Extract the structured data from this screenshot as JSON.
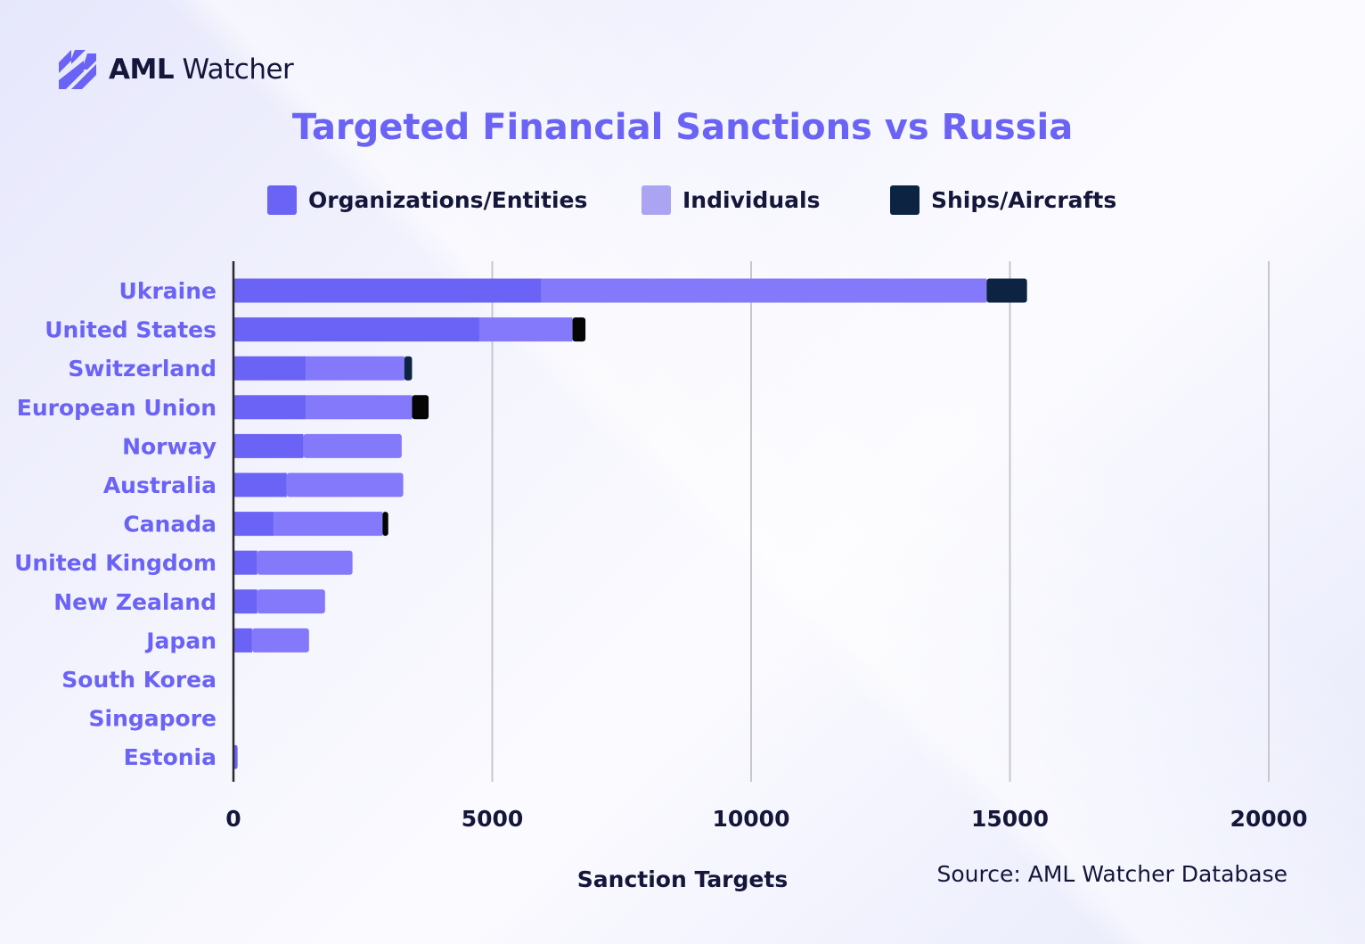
{
  "brand": {
    "name_bold": "AML",
    "name_regular": "Watcher",
    "logo_icon": "diagonal-stripes-logo-icon",
    "logo_color": "#6a63f5"
  },
  "source_text": "Source: AML Watcher Database",
  "colors": {
    "title": "#6a63f5",
    "category_label": "#6a63f5",
    "text_dark": "#14173a",
    "grid": "#c8c8cc",
    "axis": "#2a2a2a"
  },
  "chart_data": {
    "type": "bar",
    "orientation": "horizontal",
    "stacked": true,
    "title": "Targeted Financial Sanctions vs Russia",
    "xlabel": "Sanction Targets",
    "ylabel": "",
    "xlim": [
      0,
      20000
    ],
    "xticks": [
      "0",
      "5000",
      "10000",
      "15000",
      "20000"
    ],
    "grid": true,
    "legend_position": "top",
    "categories": [
      "Ukraine",
      "United States",
      "Switzerland",
      "European Union",
      "Norway",
      "Australia",
      "Canada",
      "United Kingdom",
      "New Zealand",
      "Japan",
      "South Korea",
      "Singapore",
      "Estonia"
    ],
    "series": [
      {
        "name": "Organizations/Entities",
        "color": "#6a63f5",
        "values": [
          5950,
          4750,
          1400,
          1400,
          1350,
          1030,
          780,
          460,
          460,
          360,
          0,
          0,
          80
        ]
      },
      {
        "name": "Individuals",
        "color": "#8479fb",
        "legend_color": "#aba4f3",
        "values": [
          8600,
          1800,
          1900,
          2050,
          1900,
          2250,
          2100,
          1840,
          1310,
          1100,
          0,
          0,
          0
        ]
      },
      {
        "name": "Ships/Aircrafts",
        "color": "#0c2442",
        "legend_color": "#0c2442",
        "segment_colors": [
          "#0c2442",
          "#050505",
          "#0c2442",
          "#050505",
          "#0c2442",
          "#0c2442",
          "#050505",
          "#0c2442",
          "#0c2442",
          "#0c2442",
          "#0c2442",
          "#0c2442",
          "#0c2442"
        ],
        "values": [
          780,
          250,
          150,
          320,
          0,
          0,
          110,
          0,
          0,
          0,
          0,
          0,
          0
        ]
      }
    ]
  }
}
